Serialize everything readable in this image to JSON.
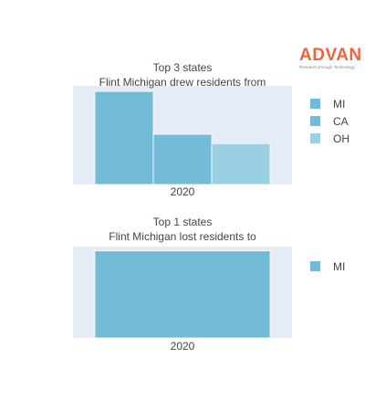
{
  "logo": {
    "name": "ADVAN",
    "tagline": "Research through Technology"
  },
  "chart_data": [
    {
      "type": "bar",
      "title": "Top 3 states",
      "subtitle": "Flint Michigan drew residents from",
      "categories": [
        "2020"
      ],
      "series": [
        {
          "name": "MI",
          "values": [
            100
          ],
          "color": "#71bbd6"
        },
        {
          "name": "CA",
          "values": [
            54
          ],
          "color": "#74bbd7"
        },
        {
          "name": "OH",
          "values": [
            44
          ],
          "color": "#9bd0e3"
        }
      ],
      "ylim": [
        0,
        106
      ],
      "grid": false,
      "legend_position": "right"
    },
    {
      "type": "bar",
      "title": "Top 1 states",
      "subtitle": "Flint Michigan lost residents to",
      "categories": [
        "2020"
      ],
      "series": [
        {
          "name": "MI",
          "values": [
            100
          ],
          "color": "#71bbd6"
        }
      ],
      "ylim": [
        0,
        105
      ],
      "grid": false,
      "legend_position": "right"
    }
  ]
}
